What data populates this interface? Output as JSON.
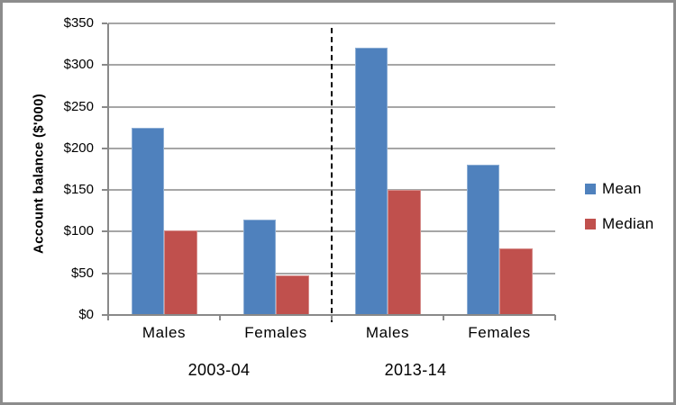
{
  "chart_data": {
    "type": "bar",
    "title": "",
    "ylabel": "Account balance ($'000)",
    "xlabel": "",
    "ylim": [
      0,
      350
    ],
    "ytick_step": 50,
    "ytick_labels": [
      "$0",
      "$50",
      "$100",
      "$150",
      "$200",
      "$250",
      "$300",
      "$350"
    ],
    "grid": true,
    "legend_position": "right",
    "group_labels": [
      "2003-04",
      "2013-14"
    ],
    "categories": [
      "Males",
      "Females",
      "Males",
      "Females"
    ],
    "series": [
      {
        "name": "Mean",
        "color": "#4F81BD",
        "values": [
          225,
          114,
          321,
          180
        ]
      },
      {
        "name": "Median",
        "color": "#C0504D",
        "values": [
          102,
          48,
          150,
          80
        ]
      }
    ],
    "annotations": [
      "dashed vertical divider between 2003-04 and 2013-14 groups"
    ]
  },
  "colors": {
    "mean": "#4F81BD",
    "median": "#C0504D",
    "gridline": "#A6A6A6",
    "axis": "#898989",
    "chart_border": "#8C8C8C",
    "separator": "#000000",
    "text": "#000000"
  },
  "legend": {
    "items": [
      {
        "label": "Mean",
        "color": "#4F81BD"
      },
      {
        "label": "Median",
        "color": "#C0504D"
      }
    ]
  }
}
